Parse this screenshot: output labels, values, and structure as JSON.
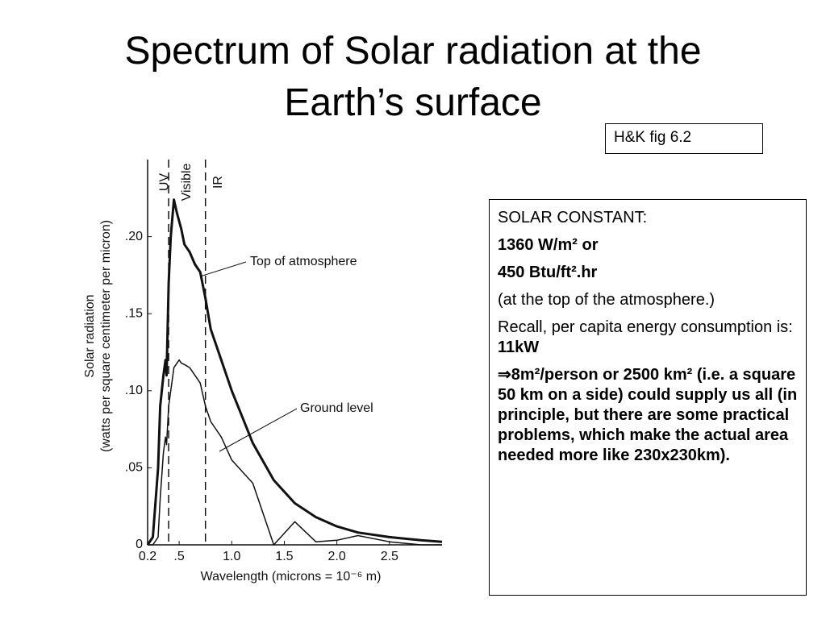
{
  "title_lines": [
    "Spectrum of Solar radiation at the",
    "Earth’s surface"
  ],
  "reference": "H&K fig 6.2",
  "info_box": {
    "paragraphs": [
      {
        "text": "SOLAR CONSTANT:",
        "bold": false
      },
      {
        "text": "1360 W/m²  or",
        "bold": true
      },
      {
        "text": "450 Btu/ft².hr",
        "bold": true
      },
      {
        "text": "(at the top of the atmosphere.)",
        "bold": false
      },
      {
        "text": "Recall, per capita energy consumption is: ",
        "bold": false,
        "emphasis": "11kW"
      },
      {
        "text": "⇒8m²/person or 2500 km² (i.e. a square 50 km on a side) could supply us all (in principle, but there are some practical problems, which make the actual area needed more like 230x230km).",
        "bold": true
      }
    ]
  },
  "chart_data": {
    "type": "line",
    "x_label": "Wavelength (microns = 10⁻⁶ m)",
    "y_label_lines": [
      "Solar radiation",
      "(watts per square centimeter per micron)"
    ],
    "x": [
      0.2,
      0.25,
      0.3,
      0.32,
      0.35,
      0.37,
      0.38,
      0.4,
      0.42,
      0.45,
      0.48,
      0.5,
      0.52,
      0.55,
      0.6,
      0.65,
      0.7,
      0.75,
      0.8,
      0.9,
      1.0,
      1.2,
      1.4,
      1.6,
      1.8,
      2.0,
      2.2,
      2.5,
      2.8,
      3.0
    ],
    "series": [
      {
        "name": "Top of atmosphere",
        "color": "#111111",
        "width": 3,
        "values": [
          0,
          0.005,
          0.05,
          0.09,
          0.11,
          0.12,
          0.11,
          0.17,
          0.2,
          0.224,
          0.215,
          0.21,
          0.205,
          0.195,
          0.19,
          0.182,
          0.177,
          0.16,
          0.14,
          0.12,
          0.1,
          0.066,
          0.042,
          0.027,
          0.018,
          0.012,
          0.008,
          0.005,
          0.003,
          0.002
        ]
      },
      {
        "name": "Ground level",
        "color": "#111111",
        "width": 1.5,
        "values": [
          0,
          0,
          0.005,
          0.03,
          0.06,
          0.07,
          0.065,
          0.09,
          0.1,
          0.115,
          0.118,
          0.12,
          0.118,
          0.117,
          0.115,
          0.11,
          0.105,
          0.09,
          0.08,
          0.07,
          0.055,
          0.04,
          0,
          0.015,
          0.002,
          0.003,
          0.006,
          0.002,
          0,
          0
        ]
      }
    ],
    "regions": [
      {
        "label": "UV",
        "end": 0.4
      },
      {
        "label": "Visible",
        "end": 0.75
      },
      {
        "label": "IR"
      }
    ],
    "xlim": [
      0.2,
      3.0
    ],
    "ylim": [
      0,
      0.25
    ],
    "xticks": [
      {
        "value": 0.2,
        "label": "0.2"
      },
      {
        "value": 0.5,
        "label": ".5"
      },
      {
        "value": 1.0,
        "label": "1.0"
      },
      1.5,
      {
        "value": 2.0,
        "label": "2.0"
      },
      2.5
    ],
    "yticks": [
      0,
      {
        "value": 0.05,
        "label": ".05"
      },
      {
        "value": 0.1,
        "label": ".10"
      },
      {
        "value": 0.15,
        "label": ".15"
      },
      {
        "value": 0.2,
        "label": ".20"
      }
    ]
  }
}
